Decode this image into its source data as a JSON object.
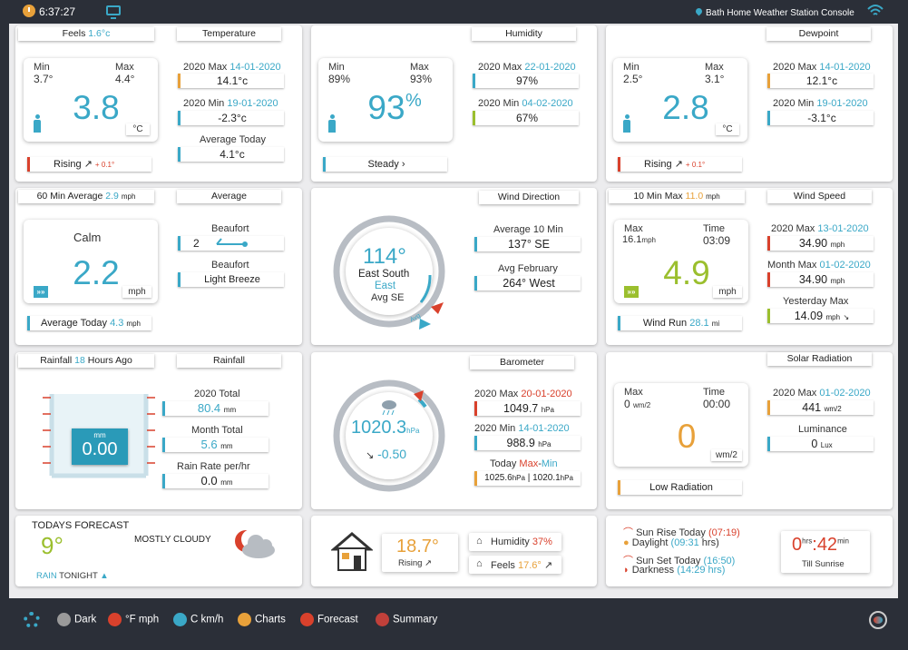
{
  "top": {
    "time": "6:37:27",
    "station": "Bath Home Weather Station Console"
  },
  "temp": {
    "feels_label": "Feels",
    "feels_val": "1.6°c",
    "title": "Temperature",
    "min_label": "Min",
    "min": "3.7°",
    "max_label": "Max",
    "max": "4.4°",
    "value": "3.8",
    "unit": "°C",
    "trend": "Rising",
    "trend_delta": "+ 0.1°",
    "max_year_label": "2020 Max",
    "max_year_date": "14-01-2020",
    "max_year": "14.1°c",
    "min_year_label": "2020 Min",
    "min_year_date": "19-01-2020",
    "min_year": "-2.3°c",
    "avg_label": "Average Today",
    "avg": "4.1°c"
  },
  "hum": {
    "title": "Humidity",
    "min_label": "Min",
    "min": "89%",
    "max_label": "Max",
    "max": "93%",
    "value": "93",
    "unit": "%",
    "trend": "Steady",
    "max_year_label": "2020 Max",
    "max_year_date": "22-01-2020",
    "max_year": "97%",
    "min_year_label": "2020 Min",
    "min_year_date": "04-02-2020",
    "min_year": "67%"
  },
  "dew": {
    "title": "Dewpoint",
    "min_label": "Min",
    "min": "2.5°",
    "max_label": "Max",
    "max": "3.1°",
    "value": "2.8",
    "unit": "°C",
    "trend": "Rising",
    "trend_delta": "+ 0.1°",
    "max_year_label": "2020 Max",
    "max_year_date": "14-01-2020",
    "max_year": "12.1°c",
    "min_year_label": "2020 Min",
    "min_year_date": "19-01-2020",
    "min_year": "-3.1°c"
  },
  "wind": {
    "avg60_label": "60 Min Average",
    "avg60": "2.9",
    "avg60_unit": "mph",
    "avg_title": "Average",
    "calm": "Calm",
    "value": "2.2",
    "unit": "mph",
    "beaufort_label": "Beaufort",
    "beaufort": "2",
    "beaufort2_label": "Beaufort",
    "beaufort_desc": "Light Breeze",
    "avg_today_label": "Average Today",
    "avg_today": "4.3",
    "avg_today_unit": "mph"
  },
  "dir": {
    "title": "Wind Direction",
    "deg": "114°",
    "compass": "East South",
    "east": "East",
    "avg": "Avg SE",
    "avg10_label": "Average 10 Min",
    "avg10": "137°  SE",
    "avg_month_label": "Avg February",
    "avg_month": "264°  West",
    "avg_marker": "Avg"
  },
  "speed": {
    "max10_label": "10 Min Max",
    "max10": "11.0",
    "max10_unit": "mph",
    "title": "Wind Speed",
    "max_label": "Max",
    "max": "16.1",
    "max_unit": "mph",
    "time_label": "Time",
    "time": "03:09",
    "value": "4.9",
    "unit": "mph",
    "run_label": "Wind Run",
    "run": "28.1",
    "run_unit": "mi",
    "year_max_label": "2020 Max",
    "year_max_date": "13-01-2020",
    "year_max": "34.90",
    "year_max_unit": "mph",
    "month_max_label": "Month Max",
    "month_max_date": "01-02-2020",
    "month_max": "34.90",
    "month_max_unit": "mph",
    "yday_label": "Yesterday Max",
    "yday": "14.09",
    "yday_unit": "mph"
  },
  "rain": {
    "ago_label": "Rainfall",
    "ago_num": "18",
    "ago_suffix": "Hours Ago",
    "title": "Rainfall",
    "gauge_unit": "mm",
    "gauge_val": "0.00",
    "year_label": "2020 Total",
    "year": "80.4",
    "year_unit": "mm",
    "month_label": "Month Total",
    "month": "5.6",
    "month_unit": "mm",
    "rate_label": "Rain Rate per/hr",
    "rate": "0.0",
    "rate_unit": "mm"
  },
  "baro": {
    "title": "Barometer",
    "value": "1020.3",
    "unit": "hPa",
    "trend": "-0.50",
    "max_label": "2020 Max",
    "max_date": "20-01-2020",
    "max": "1049.7",
    "max_unit": "hPa",
    "min_label": "2020 Min",
    "min_date": "14-01-2020",
    "min": "988.9",
    "min_unit": "hPa",
    "today_label": "Today",
    "today_max_word": "Max",
    "today_sep": "-",
    "today_min_word": "Min",
    "today_max": "1025.6",
    "today_min": "1020.1",
    "today_unit": "hPa"
  },
  "solar": {
    "title": "Solar Radiation",
    "max_label": "Max",
    "max": "0",
    "max_unit": "wm/2",
    "time_label": "Time",
    "time": "00:00",
    "value": "0",
    "unit": "wm/2",
    "status": "Low Radiation",
    "year_label": "2020 Max",
    "year_date": "01-02-2020",
    "year": "441",
    "year_unit": "wm/2",
    "lum_label": "Luminance",
    "lum": "0",
    "lum_unit": "Lux"
  },
  "forecast": {
    "title": "TODAYS FORECAST",
    "temp": "9°",
    "desc": "MOSTLY CLOUDY",
    "rain": "RAIN",
    "tonight": "TONIGHT"
  },
  "indoor": {
    "temp": "18.7°",
    "trend": "Rising",
    "hum_label": "Humidity",
    "hum": "37%",
    "feels_label": "Feels",
    "feels": "17.6°"
  },
  "sun": {
    "rise_label": "Sun Rise Today",
    "rise": "(07:19)",
    "day_label": "Daylight",
    "day": "(09:31",
    "day_suffix": "hrs)",
    "set_label": "Sun Set Today",
    "set": "(16:50)",
    "dark_label": "Darkness",
    "dark": "(14:29 hrs)",
    "hrs": "0",
    "hrs_unit": "hrs",
    "mins": "42",
    "mins_unit": "min",
    "till": "Till Sunrise"
  },
  "legend": [
    "Dark",
    "°F mph",
    "C km/h",
    "Charts",
    "Forecast",
    "Summary"
  ],
  "colors": {
    "accent": "#3aa8c7",
    "orange": "#e8a13a",
    "green": "#9bbf2e",
    "red": "#d9412c",
    "legend": [
      "#9a9a9a",
      "#d9412c",
      "#3aa8c7",
      "#e8a13a",
      "#d9412c",
      "#c0403a"
    ]
  }
}
